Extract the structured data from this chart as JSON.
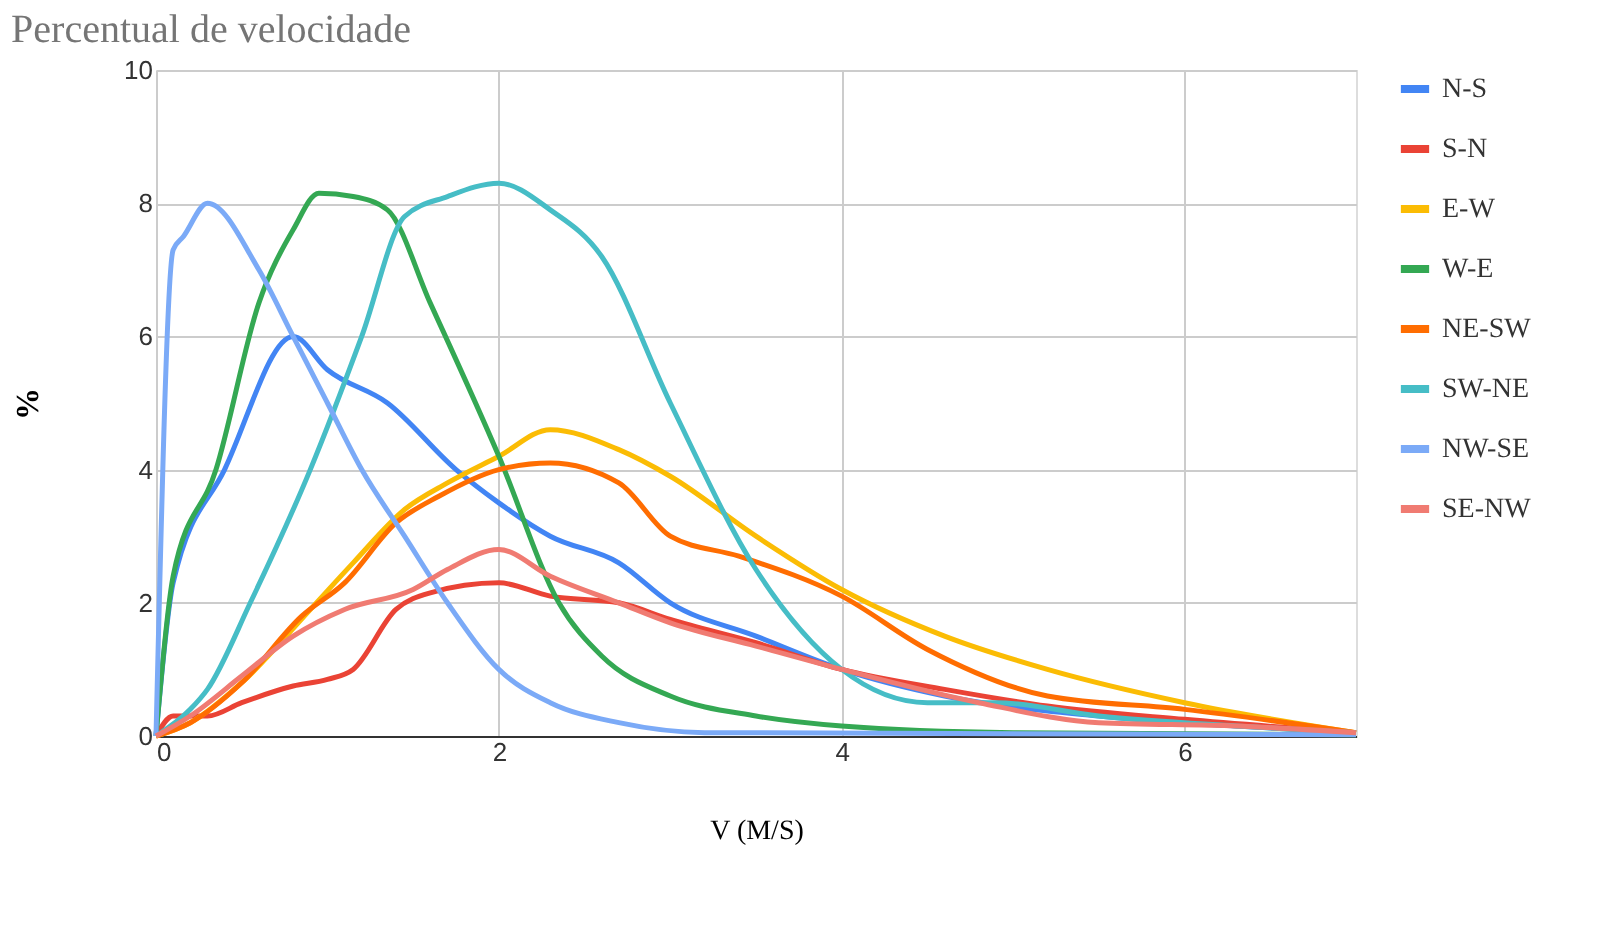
{
  "chart_data": {
    "type": "line",
    "title": "Percentual de velocidade",
    "xlabel": "V (M/S)",
    "ylabel": "%",
    "xlim": [
      0,
      7
    ],
    "xticks": [
      0,
      2,
      4,
      6
    ],
    "ylim": [
      0,
      10
    ],
    "yticks": [
      0,
      2,
      4,
      6,
      8,
      10
    ],
    "grid": true,
    "legend": "right",
    "marker": "none",
    "line_style": "solid",
    "series": [
      {
        "name": "N-S",
        "color": "#4285f4",
        "x": [
          0,
          0.1,
          0.4,
          0.8,
          1.0,
          1.35,
          1.75,
          2.0,
          2.3,
          2.7,
          3.0,
          3.5,
          4.0,
          4.6,
          5.5,
          6.3,
          7
        ],
        "values": [
          0,
          2.3,
          4.0,
          6.0,
          5.5,
          5.0,
          4.0,
          3.5,
          3.0,
          2.6,
          2.0,
          1.5,
          1.0,
          0.6,
          0.3,
          0.15,
          0.05
        ]
      },
      {
        "name": "S-N",
        "color": "#ea4335",
        "x": [
          0,
          0.1,
          0.3,
          0.5,
          0.8,
          1.0,
          1.15,
          1.4,
          1.6,
          2.0,
          2.3,
          2.7,
          3.0,
          3.5,
          4.0,
          4.6,
          5.2,
          6.0,
          7
        ],
        "values": [
          0,
          0.3,
          0.3,
          0.5,
          0.75,
          0.85,
          1.0,
          1.9,
          2.15,
          2.3,
          2.1,
          2.0,
          1.75,
          1.4,
          1.0,
          0.7,
          0.45,
          0.25,
          0.05
        ]
      },
      {
        "name": "E-W",
        "color": "#fbbc04",
        "x": [
          0,
          0.2,
          0.5,
          0.9,
          1.15,
          1.45,
          1.7,
          2.0,
          2.3,
          2.7,
          3.0,
          3.5,
          4.0,
          4.6,
          5.2,
          6.0,
          7
        ],
        "values": [
          0,
          0.2,
          0.8,
          1.9,
          2.6,
          3.4,
          3.8,
          4.2,
          4.6,
          4.3,
          3.9,
          3.0,
          2.2,
          1.5,
          1.0,
          0.5,
          0.05
        ]
      },
      {
        "name": "W-E",
        "color": "#34a853",
        "x": [
          0,
          0.1,
          0.35,
          0.6,
          0.8,
          0.95,
          1.15,
          1.35,
          1.6,
          2.0,
          2.35,
          2.6,
          3.0,
          3.5,
          4.0,
          5.0,
          7
        ],
        "values": [
          0,
          2.4,
          4.0,
          6.5,
          7.6,
          8.15,
          8.1,
          7.9,
          6.5,
          4.2,
          2.0,
          1.2,
          0.6,
          0.3,
          0.15,
          0.05,
          0.02
        ]
      },
      {
        "name": "NE-SW",
        "color": "#ff6d01",
        "x": [
          0,
          0.2,
          0.5,
          0.85,
          1.1,
          1.4,
          1.65,
          2.0,
          2.3,
          2.7,
          3.0,
          3.4,
          4.0,
          4.5,
          5.2,
          6.0,
          7
        ],
        "values": [
          0,
          0.2,
          0.8,
          1.8,
          2.3,
          3.2,
          3.6,
          4.0,
          4.1,
          3.8,
          3.0,
          2.7,
          2.1,
          1.3,
          0.6,
          0.4,
          0.05
        ]
      },
      {
        "name": "SW-NE",
        "color": "#46bdc6",
        "x": [
          0,
          0.2,
          0.3,
          0.55,
          0.9,
          1.2,
          1.45,
          1.7,
          2.0,
          2.3,
          2.6,
          3.0,
          3.5,
          4.0,
          4.5,
          4.9,
          5.5,
          6.3,
          7
        ],
        "values": [
          0,
          0.4,
          0.7,
          2.0,
          4.0,
          6.0,
          7.8,
          8.1,
          8.3,
          7.9,
          7.2,
          5.0,
          2.5,
          1.0,
          0.5,
          0.5,
          0.3,
          0.15,
          0.05
        ]
      },
      {
        "name": "NW-SE",
        "color": "#7baaf7",
        "x": [
          0,
          0.1,
          0.16,
          0.3,
          0.6,
          0.8,
          1.0,
          1.2,
          1.45,
          1.7,
          2.0,
          2.3,
          2.7,
          3.2,
          7
        ],
        "values": [
          0,
          7.3,
          7.5,
          8.0,
          7.0,
          6.0,
          5.0,
          4.0,
          3.0,
          2.0,
          1.0,
          0.5,
          0.2,
          0.05,
          0.02
        ]
      },
      {
        "name": "SE-NW",
        "color": "#f07b72",
        "x": [
          0,
          0.2,
          0.5,
          0.8,
          1.1,
          1.5,
          1.7,
          2.0,
          2.3,
          2.7,
          3.0,
          3.5,
          4.0,
          4.8,
          5.5,
          6.3,
          7
        ],
        "values": [
          0,
          0.3,
          0.9,
          1.5,
          1.9,
          2.2,
          2.5,
          2.8,
          2.4,
          2.0,
          1.7,
          1.35,
          1.0,
          0.5,
          0.2,
          0.15,
          0.05
        ]
      }
    ]
  }
}
